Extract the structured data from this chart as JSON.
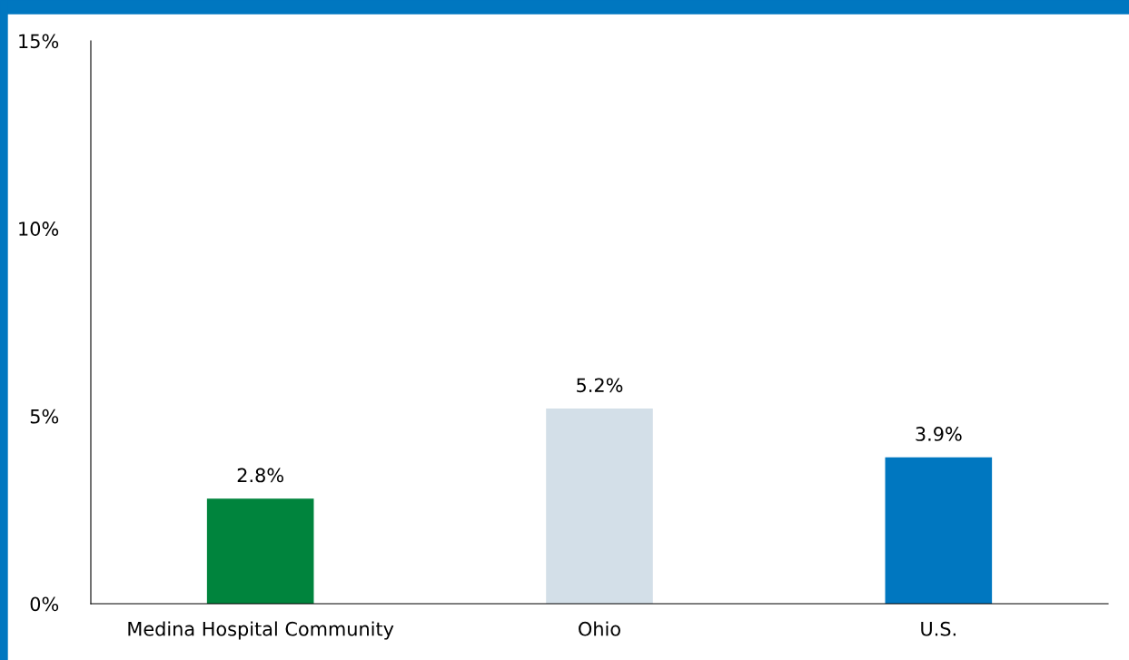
{
  "chart_data": {
    "type": "bar",
    "categories": [
      "Medina Hospital Community",
      "Ohio",
      "U.S."
    ],
    "values": [
      2.8,
      5.2,
      3.9
    ],
    "colors": [
      "#00843d",
      "#d3dfe8",
      "#0077c0"
    ],
    "value_labels": [
      "2.8%",
      "5.2%",
      "3.9%"
    ],
    "ylim": [
      0,
      15
    ],
    "yticks": [
      {
        "value": 0,
        "label": "0%"
      },
      {
        "value": 5,
        "label": "5%"
      },
      {
        "value": 10,
        "label": "10%"
      },
      {
        "value": 15,
        "label": "15%"
      }
    ],
    "grid": false,
    "legend": false
  }
}
